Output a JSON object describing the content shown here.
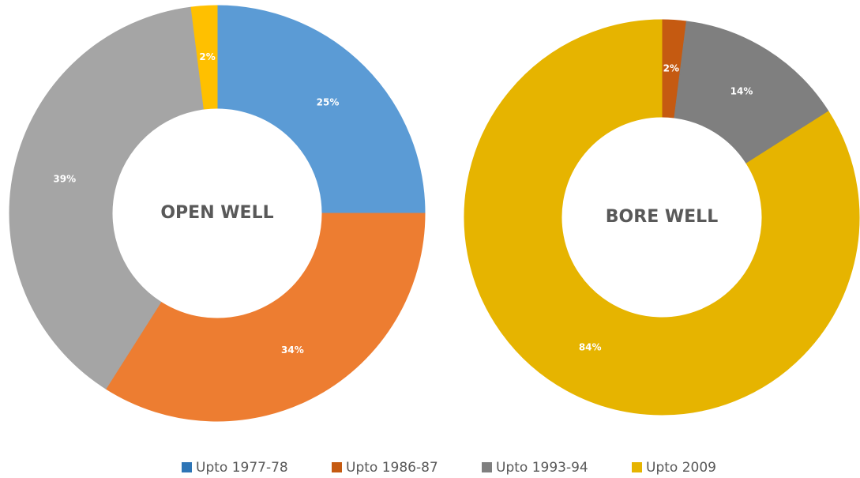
{
  "chart_data": [
    {
      "type": "pie",
      "title": "OPEN WELL",
      "categories": [
        "Upto 1977-78",
        "Upto 1986-87",
        "Upto 1993-94",
        "Upto 2009"
      ],
      "values": [
        25,
        34,
        39,
        2
      ],
      "value_labels": [
        "25%",
        "34%",
        "39%",
        "2%"
      ],
      "colors": [
        "#5b9bd5",
        "#ed7d31",
        "#a5a5a5",
        "#ffc000"
      ]
    },
    {
      "type": "pie",
      "title": "BORE WELL",
      "categories": [
        "Upto 1977-78",
        "Upto 1986-87",
        "Upto 1993-94",
        "Upto 2009"
      ],
      "values": [
        0,
        2,
        14,
        84
      ],
      "value_labels": [
        "0%",
        "2%",
        "14%",
        "84%"
      ],
      "colors": [
        "#2e75b6",
        "#c55a11",
        "#7f7f7f",
        "#e6b400"
      ]
    }
  ]
}
